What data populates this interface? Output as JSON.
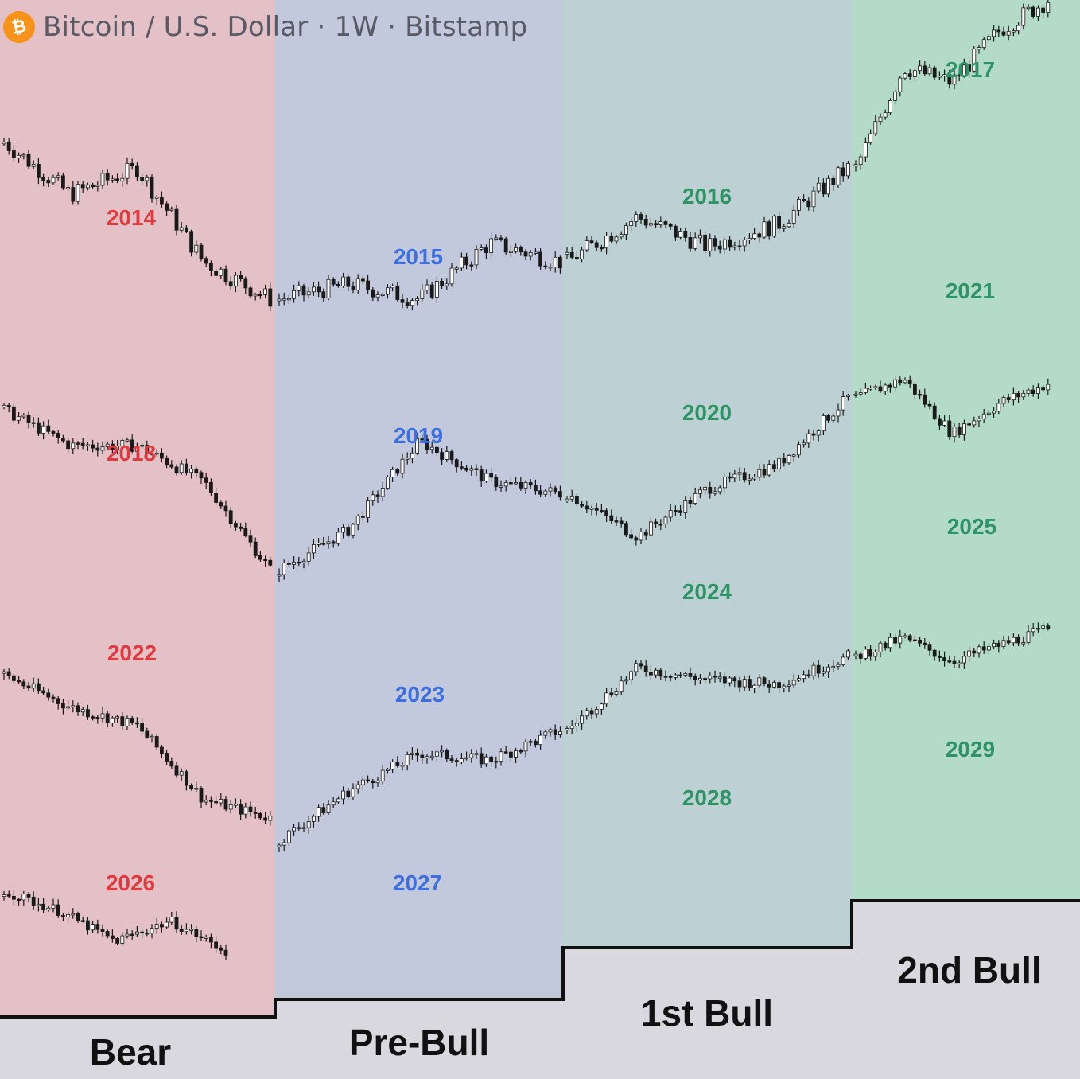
{
  "header": {
    "title": "Bitcoin / U.S. Dollar · 1W · Bitstamp",
    "logo_icon": "bitcoin-logo-icon",
    "logo_glyph": "₿",
    "logo_color": "#f7931a"
  },
  "chart_data": {
    "type": "candlestick-cycle-comparison",
    "title": "Bitcoin / U.S. Dollar · 1W · Bitstamp",
    "phases": [
      {
        "name": "Bear",
        "color": "#e3c1c7"
      },
      {
        "name": "Pre-Bull",
        "color": "#c3c9dd"
      },
      {
        "name": "1st Bull",
        "color": "#bdd1d4"
      },
      {
        "name": "2nd Bull",
        "color": "#b4dac8"
      }
    ],
    "year_colors": {
      "bear": "#e03a3e",
      "prebull": "#3d6fe0",
      "bull": "#2e9466"
    },
    "cycles": [
      {
        "row": 1,
        "bear": "2014",
        "prebull": "2015",
        "bull1": "2016",
        "bull2": "2017"
      },
      {
        "row": 2,
        "bear": "2018",
        "prebull": "2019",
        "bull1": "2020",
        "bull2": "2021"
      },
      {
        "row": 3,
        "bear": "2022",
        "prebull": "2023",
        "bull1": "2024",
        "bull2": "2025"
      },
      {
        "row": 4,
        "bear": "2026",
        "prebull": "2027",
        "bull1": "2028",
        "bull2": "2029"
      }
    ],
    "series_shape": {
      "row1": {
        "bear": [
          0.62,
          0.48,
          0.55,
          0.3,
          0.2
        ],
        "prebull": [
          0.2,
          0.24,
          0.2,
          0.35,
          0.3
        ],
        "bull1": [
          0.3,
          0.42,
          0.34,
          0.4,
          0.55
        ],
        "bull2": [
          0.55,
          0.82,
          0.78,
          0.92,
          1.0
        ]
      },
      "row2": {
        "bear": [
          0.85,
          0.7,
          0.7,
          0.55,
          0.18
        ],
        "prebull": [
          0.18,
          0.35,
          0.72,
          0.55,
          0.5
        ],
        "bull1": [
          0.5,
          0.32,
          0.52,
          0.62,
          0.9
        ],
        "bull2": [
          0.9,
          0.98,
          0.75,
          0.88,
          0.96
        ]
      },
      "row3": {
        "bear": [
          0.92,
          0.78,
          0.7,
          0.38,
          0.3
        ],
        "prebull": [
          0.2,
          0.42,
          0.58,
          0.55,
          0.68
        ],
        "bull1": [
          0.68,
          0.95,
          0.9,
          0.88,
          1.0
        ],
        "bull2": [
          1.0,
          1.08,
          0.98,
          1.05,
          1.12
        ]
      },
      "row4": {
        "bear": [
          0.8,
          0.7,
          0.55,
          0.65,
          0.5
        ],
        "prebull": [],
        "bull1": [],
        "bull2": []
      }
    }
  },
  "phase_labels": {
    "bear": "Bear",
    "prebull": "Pre-Bull",
    "bull1": "1st Bull",
    "bull2": "2nd Bull"
  }
}
